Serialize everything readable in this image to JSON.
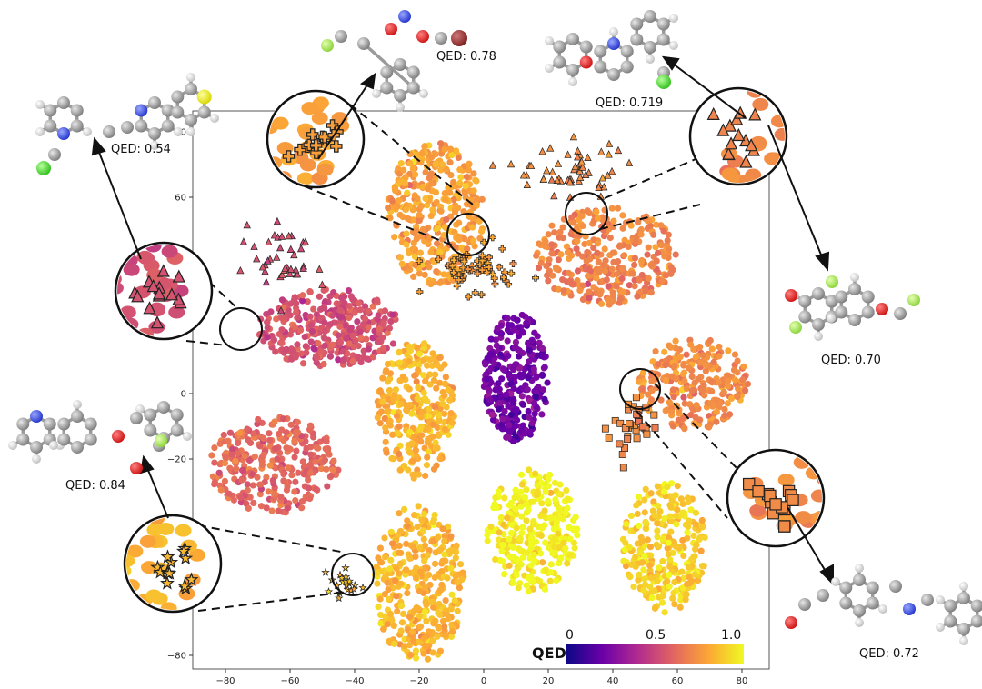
{
  "chart_data": {
    "type": "scatter",
    "title": "",
    "xlabel": "",
    "ylabel": "",
    "xlim": [
      -90,
      90
    ],
    "ylim": [
      -90,
      90
    ],
    "xticks": [
      -80,
      -60,
      -40,
      -20,
      0,
      20,
      40,
      60,
      80
    ],
    "yticks": [
      -80,
      -60,
      -40,
      -20,
      0,
      20,
      40,
      60,
      80
    ],
    "grid": false,
    "colorbar": {
      "title": "QED",
      "ticks": [
        "0",
        "0.5",
        "1.0"
      ],
      "placement": "bottom-right",
      "colormap": "plasma"
    },
    "clusters": [
      {
        "cx": -15,
        "cy": 55,
        "rx": 15,
        "ry": 22,
        "qed": 0.78,
        "n": 380,
        "marker": "circle"
      },
      {
        "cx": 38,
        "cy": 42,
        "rx": 22,
        "ry": 15,
        "qed": 0.7,
        "n": 330,
        "marker": "circle"
      },
      {
        "cx": -48,
        "cy": 20,
        "rx": 22,
        "ry": 12,
        "qed": 0.54,
        "n": 330,
        "marker": "circle"
      },
      {
        "cx": 10,
        "cy": 5,
        "rx": 10,
        "ry": 20,
        "qed": 0.22,
        "n": 280,
        "marker": "circle"
      },
      {
        "cx": -21,
        "cy": -5,
        "rx": 12,
        "ry": 21,
        "qed": 0.83,
        "n": 300,
        "marker": "circle"
      },
      {
        "cx": -65,
        "cy": -22,
        "rx": 20,
        "ry": 15,
        "qed": 0.62,
        "n": 300,
        "marker": "circle"
      },
      {
        "cx": 65,
        "cy": 3,
        "rx": 17,
        "ry": 14,
        "qed": 0.72,
        "n": 260,
        "marker": "circle"
      },
      {
        "cx": -20,
        "cy": -58,
        "rx": 14,
        "ry": 24,
        "qed": 0.84,
        "n": 360,
        "marker": "circle"
      },
      {
        "cx": 15,
        "cy": -42,
        "rx": 14,
        "ry": 19,
        "qed": 0.98,
        "n": 300,
        "marker": "circle"
      },
      {
        "cx": 56,
        "cy": -47,
        "rx": 13,
        "ry": 20,
        "qed": 0.9,
        "n": 280,
        "marker": "circle"
      }
    ],
    "highlighted_groups": [
      {
        "marker": "plus",
        "qed": 0.78,
        "cx": -3,
        "cy": 38,
        "rx": 14,
        "ry": 7,
        "n": 60
      },
      {
        "marker": "triangle",
        "qed": 0.719,
        "cx": 27,
        "cy": 68,
        "rx": 16,
        "ry": 10,
        "n": 55
      },
      {
        "marker": "triangle",
        "qed": 0.54,
        "cx": -62,
        "cy": 42,
        "rx": 10,
        "ry": 12,
        "n": 40
      },
      {
        "marker": "square",
        "qed": 0.72,
        "cx": 45,
        "cy": -10,
        "rx": 8,
        "ry": 9,
        "n": 35
      },
      {
        "marker": "star",
        "qed": 0.84,
        "cx": -43,
        "cy": -58,
        "rx": 5,
        "ry": 5,
        "n": 20
      }
    ]
  },
  "annotations": [
    {
      "id": "top-center",
      "text": "QED: 0.78"
    },
    {
      "id": "top-right",
      "text": "QED: 0.719"
    },
    {
      "id": "top-left",
      "text": "QED: 0.54"
    },
    {
      "id": "right",
      "text": "QED: 0.70"
    },
    {
      "id": "bottom-left",
      "text": "QED: 0.84"
    },
    {
      "id": "bottom-right",
      "text": "QED: 0.72"
    }
  ]
}
